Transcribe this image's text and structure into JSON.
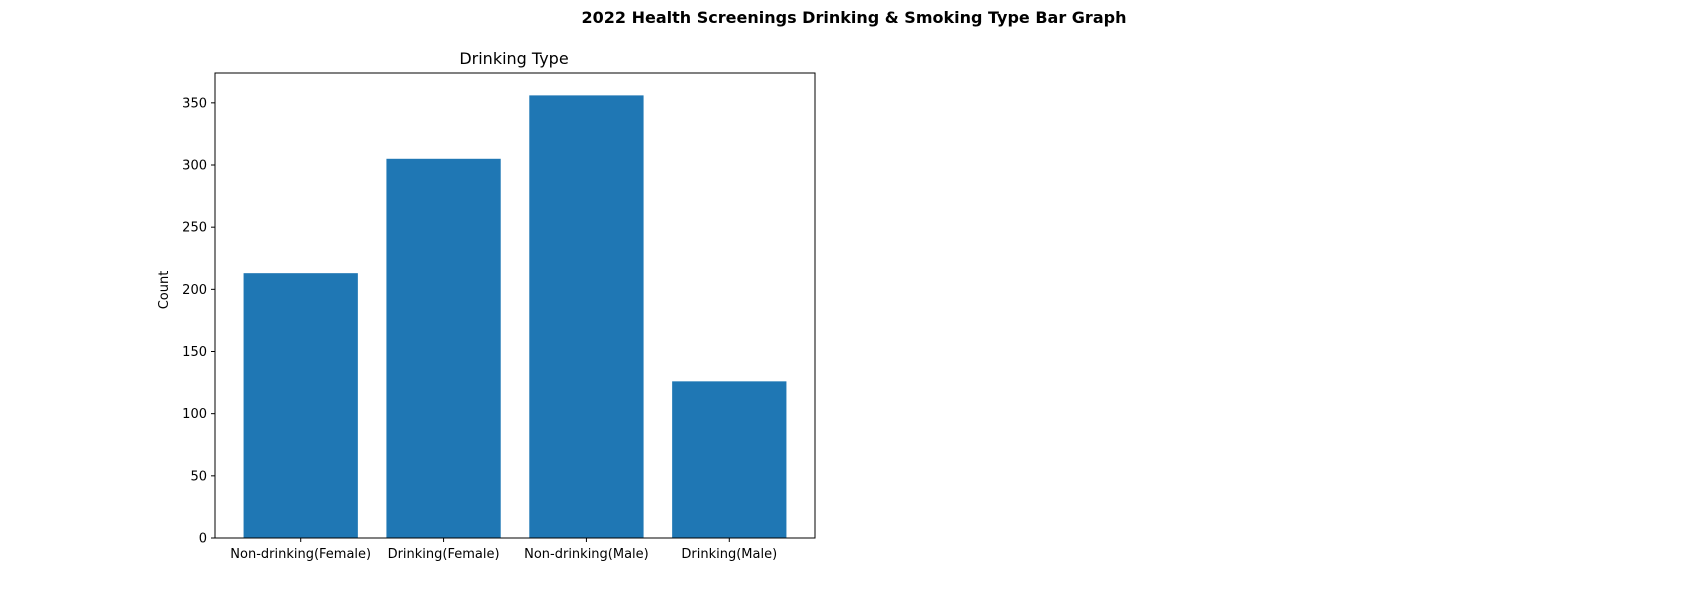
{
  "figure": {
    "suptitle": "2022 Health Screenings Drinking & Smoking Type Bar Graph"
  },
  "chart_data": {
    "type": "bar",
    "title": "Drinking Type",
    "xlabel": "",
    "ylabel": "Count",
    "categories": [
      "Non-drinking(Female)",
      "Drinking(Female)",
      "Non-drinking(Male)",
      "Drinking(Male)"
    ],
    "values": [
      213,
      305,
      356,
      126
    ],
    "ylim": [
      0,
      374
    ],
    "yticks": [
      0,
      50,
      100,
      150,
      200,
      250,
      300,
      350
    ],
    "grid": false,
    "legend": "none",
    "bar_color": "#1f77b4"
  }
}
